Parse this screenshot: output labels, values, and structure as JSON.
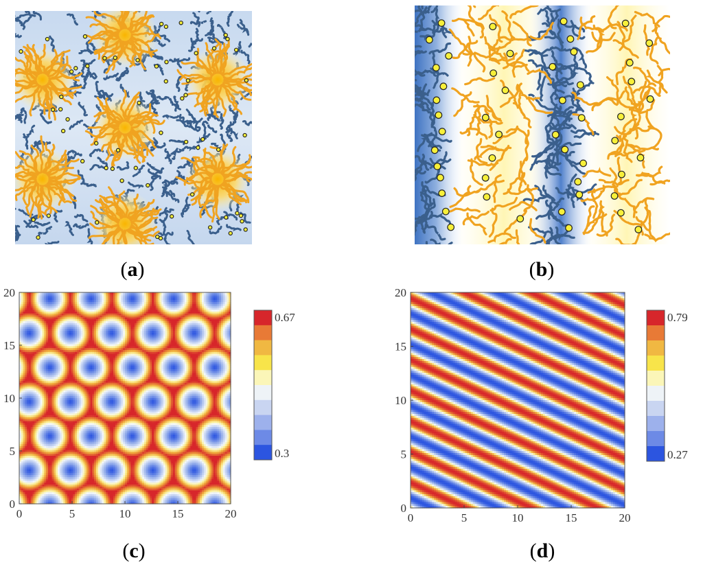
{
  "captions": {
    "a": {
      "open": "(",
      "letter": "a",
      "close": ")"
    },
    "b": {
      "open": "(",
      "letter": "b",
      "close": ")"
    },
    "c": {
      "open": "(",
      "letter": "c",
      "close": ")"
    },
    "d": {
      "open": "(",
      "letter": "d",
      "close": ")"
    }
  },
  "colors": {
    "blue_chain": "#3a5f8c",
    "orange_chain": "#f0a320",
    "yellow_bead": "#f7f03a",
    "map_red": "#d7262b",
    "map_white": "#f4f8fb",
    "map_blue": "#2c55e0"
  },
  "chart_data": [
    {
      "type": "heatmap",
      "pattern": "hexagonal spots",
      "x_ticks": [
        "0",
        "5",
        "10",
        "15",
        "20"
      ],
      "y_ticks": [
        "0",
        "5",
        "10",
        "15",
        "20"
      ],
      "xlim": [
        0,
        20
      ],
      "ylim": [
        0,
        20
      ],
      "colorbar": {
        "max_label": "0.67",
        "min_label": "0.3",
        "min": 0.3,
        "max": 0.67,
        "levels": 10
      }
    },
    {
      "type": "heatmap",
      "pattern": "diagonal lamellae",
      "x_ticks": [
        "0",
        "5",
        "10",
        "15",
        "20"
      ],
      "y_ticks": [
        "0",
        "5",
        "10",
        "15",
        "20"
      ],
      "xlim": [
        0,
        20
      ],
      "ylim": [
        0,
        20
      ],
      "colorbar": {
        "max_label": "0.79",
        "min_label": "0.27",
        "min": 0.27,
        "max": 0.79,
        "levels": 10
      }
    }
  ]
}
